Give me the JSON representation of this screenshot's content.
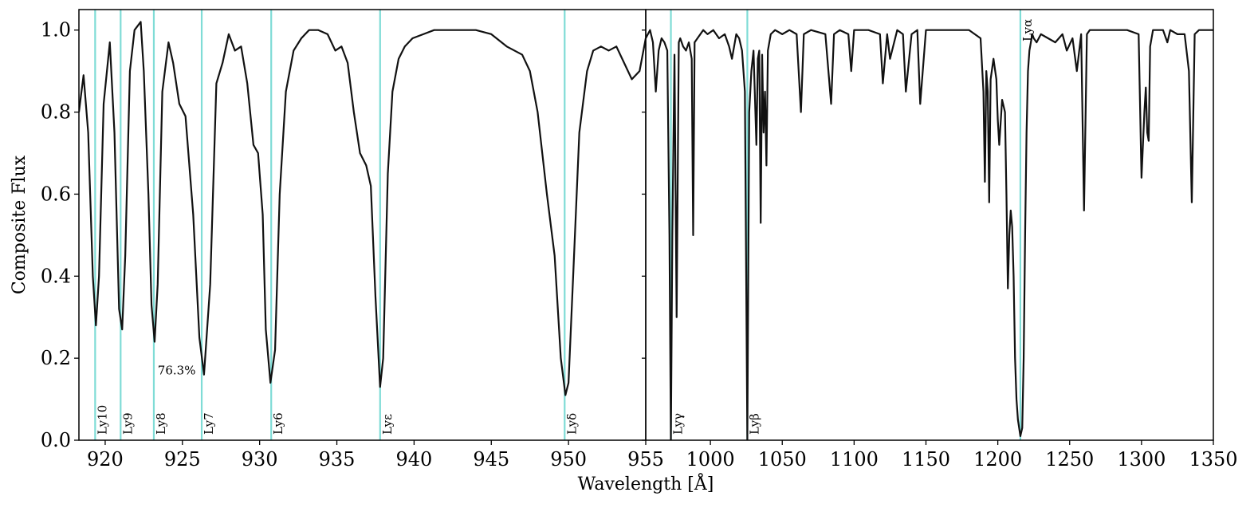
{
  "chart_data": {
    "type": "line",
    "ylabel": "Composite Flux",
    "xlabel": "Wavelength [Å]",
    "ylim": [
      0,
      1.05
    ],
    "yticks": [
      "0.0",
      "0.2",
      "0.4",
      "0.6",
      "0.8",
      "1.0"
    ],
    "yticks_values": [
      0,
      0.2,
      0.4,
      0.6,
      0.8,
      1.0
    ],
    "colors": {
      "spectrum": "#111111",
      "lines": "#7fdcd6",
      "axes": "#000000"
    },
    "annotation": {
      "text": "76.3%",
      "x": 923.4,
      "y": 0.16
    },
    "panels": [
      {
        "name": "left",
        "xlim": [
          918.3,
          955
        ],
        "xticks": [
          920,
          925,
          930,
          935,
          940,
          945,
          950
        ],
        "xtick_labels": [
          "920",
          "925",
          "930",
          "935",
          "940",
          "945",
          "950"
        ],
        "series": [
          {
            "x": [
              918.3,
              918.6,
              918.9,
              919.2,
              919.4,
              919.6,
              919.9,
              920.3,
              920.6,
              920.9,
              921.1,
              921.3,
              921.6,
              921.9,
              922.3,
              922.5,
              922.8,
              923.0,
              923.2,
              923.4,
              923.7,
              924.1,
              924.4,
              924.8,
              925.2,
              925.7,
              926.1,
              926.4,
              926.8,
              927.2,
              927.6,
              928.0,
              928.4,
              928.8,
              929.2,
              929.6,
              929.9,
              930.2,
              930.4,
              930.7,
              931.0,
              931.3,
              931.7,
              932.2,
              932.7,
              933.2,
              933.8,
              934.4,
              934.9,
              935.3,
              935.7,
              936.1,
              936.5,
              936.9,
              937.2,
              937.5,
              937.8,
              938.0,
              938.3,
              938.6,
              939.0,
              939.4,
              939.9,
              940.6,
              941.3,
              942.0,
              943.0,
              944.0,
              945.0,
              946.0,
              946.5,
              947.0,
              947.5,
              948.0,
              948.6,
              949.1,
              949.5,
              949.8,
              950.0,
              950.3,
              950.7,
              951.2,
              951.6,
              952.1,
              952.6,
              953.1,
              953.6,
              954.1,
              954.6,
              955.0
            ],
            "y": [
              0.8,
              0.89,
              0.75,
              0.4,
              0.28,
              0.4,
              0.82,
              0.97,
              0.75,
              0.32,
              0.27,
              0.45,
              0.9,
              1.0,
              1.02,
              0.9,
              0.6,
              0.33,
              0.24,
              0.38,
              0.85,
              0.97,
              0.92,
              0.82,
              0.79,
              0.55,
              0.25,
              0.16,
              0.38,
              0.87,
              0.92,
              0.99,
              0.95,
              0.96,
              0.87,
              0.72,
              0.7,
              0.55,
              0.27,
              0.14,
              0.22,
              0.6,
              0.85,
              0.95,
              0.98,
              1.0,
              1.0,
              0.99,
              0.95,
              0.96,
              0.92,
              0.8,
              0.7,
              0.67,
              0.62,
              0.35,
              0.13,
              0.2,
              0.65,
              0.85,
              0.93,
              0.96,
              0.98,
              0.99,
              1.0,
              1.0,
              1.0,
              1.0,
              0.99,
              0.96,
              0.95,
              0.94,
              0.9,
              0.8,
              0.6,
              0.45,
              0.2,
              0.11,
              0.14,
              0.4,
              0.75,
              0.9,
              0.95,
              0.96,
              0.95,
              0.96,
              0.92,
              0.88,
              0.9,
              0.98
            ]
          }
        ],
        "markers": [
          {
            "label": "Ly10",
            "x": 919.35
          },
          {
            "label": "Ly9",
            "x": 921.0
          },
          {
            "label": "Ly8",
            "x": 923.15
          },
          {
            "label": "Ly7",
            "x": 926.25
          },
          {
            "label": "Ly6",
            "x": 930.75
          },
          {
            "label": "Lyε",
            "x": 937.8
          },
          {
            "label": "Lyδ",
            "x": 949.75
          }
        ]
      },
      {
        "name": "right",
        "xlim": [
          955,
          1350
        ],
        "xticks": [
          955,
          1000,
          1050,
          1100,
          1150,
          1200,
          1250,
          1300,
          1350
        ],
        "xtick_labels": [
          "955",
          "1000",
          "1050",
          "1100",
          "1150",
          "1200",
          "1250",
          "1300",
          "1350"
        ],
        "series": [
          {
            "x": [
              955,
              958,
              960,
              962,
              964,
              966,
              968,
              970,
              971.5,
              972.5,
              973.5,
              975,
              976.5,
              978,
              979,
              981,
              983,
              985,
              987,
              988,
              989,
              991,
              993,
              995,
              998,
              1002,
              1006,
              1010,
              1013,
              1015,
              1018,
              1020,
              1022,
              1024,
              1025.7,
              1027,
              1028.5,
              1030,
              1032,
              1033,
              1034,
              1035,
              1036,
              1037,
              1038,
              1039,
              1040,
              1042,
              1045,
              1050,
              1055,
              1060,
              1063,
              1065,
              1070,
              1080,
              1084,
              1086,
              1090,
              1096,
              1098,
              1100,
              1110,
              1118,
              1120,
              1123,
              1125,
              1130,
              1134,
              1136,
              1140,
              1144,
              1146,
              1150,
              1160,
              1170,
              1180,
              1188,
              1190,
              1191,
              1192,
              1193,
              1194,
              1195,
              1197,
              1199,
              1200,
              1201,
              1203,
              1205,
              1206,
              1207,
              1208,
              1209,
              1210,
              1211,
              1212,
              1213,
              1214,
              1215.7,
              1217,
              1218,
              1219,
              1220,
              1221,
              1222,
              1223,
              1224,
              1225,
              1227,
              1230,
              1240,
              1245,
              1248,
              1252,
              1255,
              1258,
              1260,
              1262,
              1264,
              1270,
              1280,
              1290,
              1298,
              1300,
              1302,
              1303,
              1304,
              1305,
              1306,
              1308,
              1315,
              1318,
              1320,
              1325,
              1330,
              1333,
              1335,
              1337,
              1340,
              1345,
              1350
            ],
            "y": [
              0.98,
              1.0,
              0.97,
              0.85,
              0.95,
              0.98,
              0.97,
              0.95,
              0.5,
              0.0,
              0.5,
              0.94,
              0.3,
              0.97,
              0.98,
              0.96,
              0.95,
              0.97,
              0.93,
              0.5,
              0.97,
              0.98,
              0.99,
              1.0,
              0.99,
              1.0,
              0.98,
              0.99,
              0.96,
              0.93,
              0.99,
              0.98,
              0.95,
              0.85,
              0.0,
              0.8,
              0.9,
              0.95,
              0.72,
              0.93,
              0.95,
              0.53,
              0.94,
              0.75,
              0.85,
              0.67,
              0.95,
              0.99,
              1.0,
              0.99,
              1.0,
              0.99,
              0.8,
              0.99,
              1.0,
              0.99,
              0.82,
              0.99,
              1.0,
              0.99,
              0.9,
              1.0,
              1.0,
              0.99,
              0.87,
              0.99,
              0.93,
              1.0,
              0.99,
              0.85,
              0.99,
              1.0,
              0.82,
              1.0,
              1.0,
              1.0,
              1.0,
              0.98,
              0.85,
              0.63,
              0.9,
              0.85,
              0.58,
              0.88,
              0.93,
              0.88,
              0.78,
              0.72,
              0.83,
              0.8,
              0.6,
              0.37,
              0.5,
              0.56,
              0.52,
              0.4,
              0.2,
              0.1,
              0.05,
              0.01,
              0.03,
              0.2,
              0.5,
              0.75,
              0.9,
              0.95,
              0.97,
              0.99,
              0.98,
              0.97,
              0.99,
              0.97,
              0.99,
              0.95,
              0.98,
              0.9,
              0.99,
              0.56,
              0.99,
              1.0,
              1.0,
              1.0,
              1.0,
              0.99,
              0.64,
              0.8,
              0.86,
              0.75,
              0.73,
              0.96,
              1.0,
              1.0,
              0.97,
              1.0,
              0.99,
              0.99,
              0.9,
              0.58,
              0.99,
              1.0,
              1.0,
              1.0
            ]
          }
        ],
        "markers": [
          {
            "label": "Lyγ",
            "x": 972.5
          },
          {
            "label": "Lyβ",
            "x": 1025.7
          },
          {
            "label": "Lyα",
            "x": 1215.7
          }
        ]
      }
    ]
  }
}
